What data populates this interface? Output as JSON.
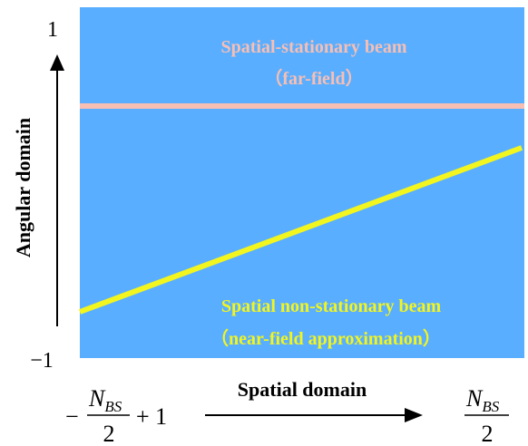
{
  "diagram": {
    "y_axis": {
      "title": "Angular domain",
      "top_tick": "1",
      "bottom_tick": "−1"
    },
    "x_axis": {
      "title": "Spatial domain",
      "left_tick": {
        "minus": "−",
        "numerator_main": "N",
        "numerator_sub": "BS",
        "denominator": "2",
        "plus_one": "+ 1"
      },
      "right_tick": {
        "numerator_main": "N",
        "numerator_sub": "BS",
        "denominator": "2"
      }
    },
    "far_field_beam": {
      "label_line1": "Spatial-stationary beam",
      "label_line2": "（far-field）",
      "color": "#F7BFB4"
    },
    "near_field_beam": {
      "label_line1": "Spatial non-stationary beam",
      "label_line2": "（near-field approximation）",
      "color": "#F2F51E"
    },
    "panel_color": "#59AEFF"
  }
}
